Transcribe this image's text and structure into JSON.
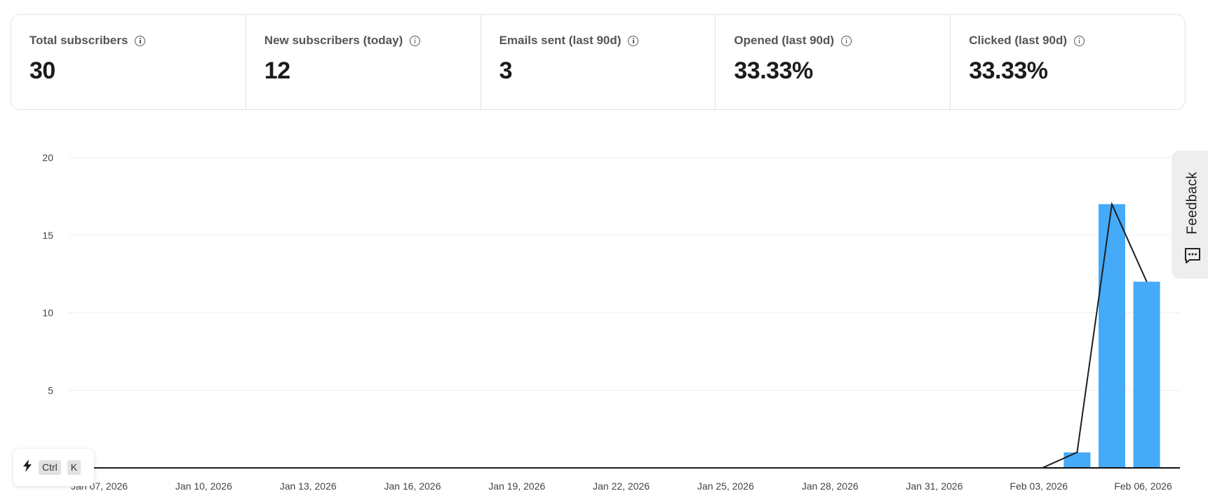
{
  "stats": [
    {
      "label": "Total subscribers",
      "value": "30"
    },
    {
      "label": "New subscribers (today)",
      "value": "12"
    },
    {
      "label": "Emails sent (last 90d)",
      "value": "3"
    },
    {
      "label": "Opened (last 90d)",
      "value": "33.33%"
    },
    {
      "label": "Clicked (last 90d)",
      "value": "33.33%"
    }
  ],
  "feedback": {
    "label": "Feedback",
    "icon": "message-icon"
  },
  "shortcut": {
    "icon": "bolt-icon",
    "keys": [
      "Ctrl",
      "K"
    ]
  },
  "colors": {
    "bar": "#45aaf8",
    "line": "#1f1f1f",
    "grid": "#efefef"
  },
  "chart_data": {
    "type": "bar",
    "ylim": [
      0,
      20
    ],
    "y_ticks": [
      5,
      10,
      15,
      20
    ],
    "x_tick_labels": [
      "Jan 07, 2026",
      "Jan 10, 2026",
      "Jan 13, 2026",
      "Jan 16, 2026",
      "Jan 19, 2026",
      "Jan 22, 2026",
      "Jan 25, 2026",
      "Jan 28, 2026",
      "Jan 31, 2026",
      "Feb 03, 2026",
      "Feb 06, 2026"
    ],
    "bars": [
      {
        "date": "Feb 04, 2026",
        "value": 1
      },
      {
        "date": "Feb 05, 2026",
        "value": 17
      },
      {
        "date": "Feb 06, 2026",
        "value": 12
      }
    ],
    "line": [
      {
        "date": "Jan 06, 2026",
        "value": 0
      },
      {
        "date": "Feb 03, 2026",
        "value": 0
      },
      {
        "date": "Feb 04, 2026",
        "value": 1
      },
      {
        "date": "Feb 05, 2026",
        "value": 17
      },
      {
        "date": "Feb 06, 2026",
        "value": 12
      }
    ],
    "grid": true
  }
}
